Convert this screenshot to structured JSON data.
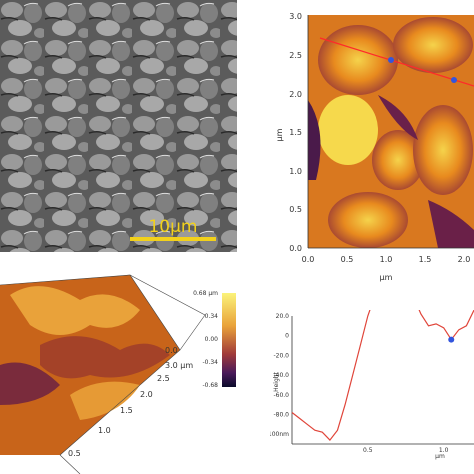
{
  "sem": {
    "scale_bar_label": "10μm",
    "scale_bar_color": "#f2d11b"
  },
  "afm2d": {
    "y_unit": "μm",
    "x_unit": "μm",
    "y_ticks": [
      "0.0",
      "0.5",
      "1.0",
      "1.5",
      "2.0",
      "2.5",
      "3.0"
    ],
    "x_ticks": [
      "0.0",
      "0.5",
      "1.0",
      "1.5",
      "2.0"
    ],
    "line_color": "#ff2a2a",
    "marker_color": "#3355dd"
  },
  "afm3d": {
    "colorbar_ticks": [
      "0.68 μm",
      "0.34",
      "0.00",
      "-0.34",
      "-0.68"
    ],
    "axis_ticks_right": [
      "0.0",
      "3.0 μm",
      "2.5",
      "2.0",
      "1.5",
      "1.0",
      "0.5"
    ]
  },
  "chart_data": {
    "type": "line",
    "ylabel": "Height",
    "xlabel": "μm",
    "y_ticks": [
      "20.0",
      "0",
      "-20.0",
      "-40.0",
      "-60.0",
      "-80.0",
      "-100nm"
    ],
    "x_ticks": [
      "0.5",
      "1.0"
    ],
    "x": [
      0.0,
      0.05,
      0.1,
      0.15,
      0.2,
      0.25,
      0.3,
      0.35,
      0.4,
      0.45,
      0.5,
      0.55,
      0.6,
      0.65,
      0.7,
      0.75,
      0.8,
      0.85,
      0.9,
      0.95,
      1.0,
      1.05,
      1.1,
      1.15,
      1.2
    ],
    "y": [
      -78,
      -84,
      -90,
      -96,
      -98,
      -106,
      -96,
      -70,
      -40,
      -10,
      20,
      42,
      58,
      62,
      58,
      50,
      40,
      22,
      10,
      12,
      8,
      -4,
      6,
      10,
      26
    ],
    "line_color": "#e0453a",
    "marker_x": 1.05,
    "marker_y": -4
  }
}
